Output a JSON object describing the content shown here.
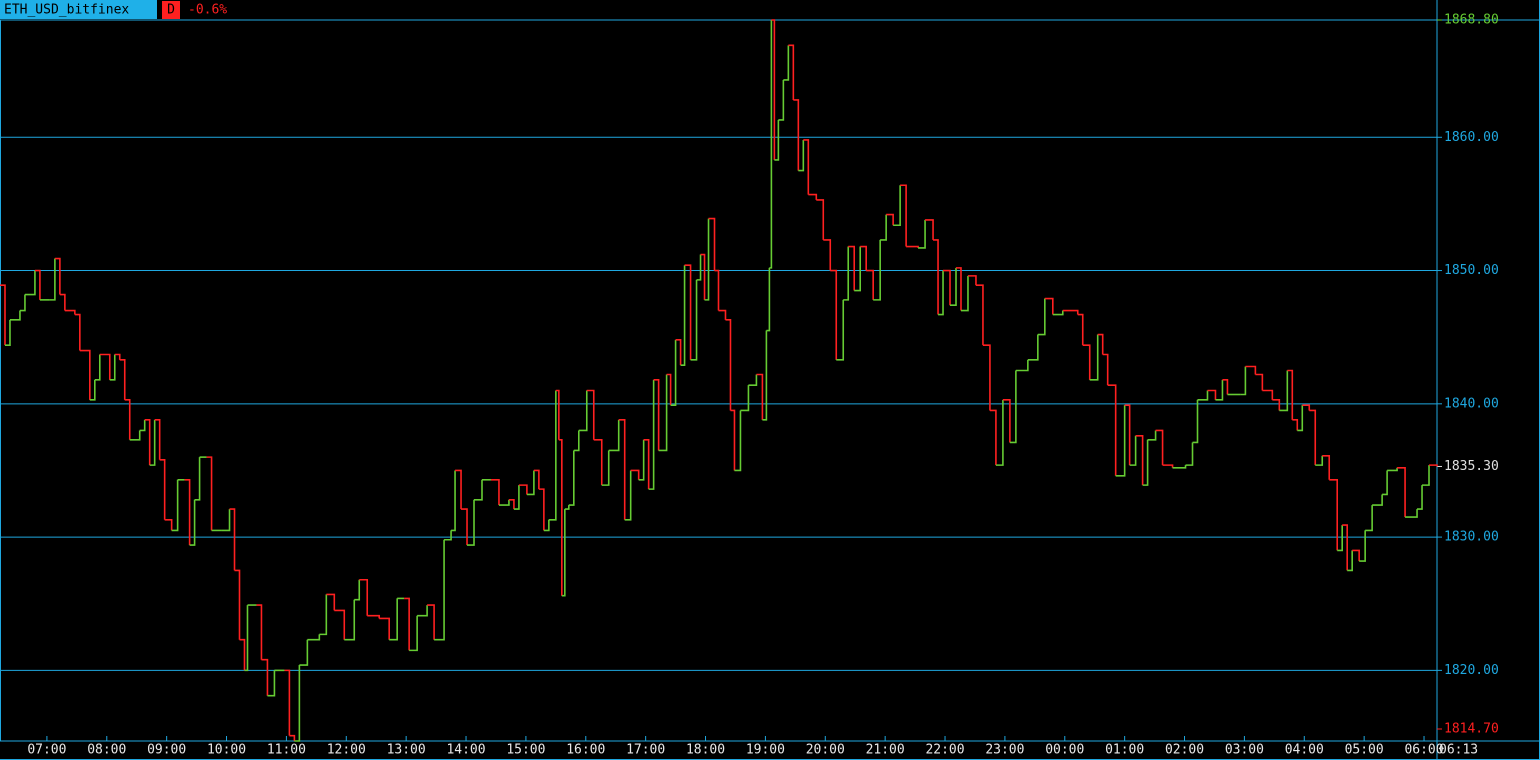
{
  "chart_data": {
    "type": "line",
    "symbol": "ETH_USD_bitfinex",
    "timeframe": "D",
    "change": "-0.6%",
    "up_color": "#66cc33",
    "down_color": "#ff2020",
    "grid_color": "#1fa8e0",
    "grid": true,
    "xlim": [
      0,
      1440
    ],
    "ylim": [
      1814.7,
      1868.8
    ],
    "yticks": [
      {
        "value": 1820,
        "label": "1820.00"
      },
      {
        "value": 1830,
        "label": "1830.00"
      },
      {
        "value": 1840,
        "label": "1840.00"
      },
      {
        "value": 1850,
        "label": "1850.00"
      },
      {
        "value": 1860,
        "label": "1860.00"
      }
    ],
    "xticks": [
      {
        "value": 47,
        "label": "07:00"
      },
      {
        "value": 107,
        "label": "08:00"
      },
      {
        "value": 167,
        "label": "09:00"
      },
      {
        "value": 227,
        "label": "10:00"
      },
      {
        "value": 287,
        "label": "11:00"
      },
      {
        "value": 347,
        "label": "12:00"
      },
      {
        "value": 407,
        "label": "13:00"
      },
      {
        "value": 467,
        "label": "14:00"
      },
      {
        "value": 527,
        "label": "15:00"
      },
      {
        "value": 587,
        "label": "16:00"
      },
      {
        "value": 647,
        "label": "17:00"
      },
      {
        "value": 707,
        "label": "18:00"
      },
      {
        "value": 767,
        "label": "19:00"
      },
      {
        "value": 827,
        "label": "20:00"
      },
      {
        "value": 887,
        "label": "21:00"
      },
      {
        "value": 947,
        "label": "22:00"
      },
      {
        "value": 1007,
        "label": "23:00"
      },
      {
        "value": 1067,
        "label": "00:00"
      },
      {
        "value": 1127,
        "label": "01:00"
      },
      {
        "value": 1187,
        "label": "02:00"
      },
      {
        "value": 1247,
        "label": "03:00"
      },
      {
        "value": 1307,
        "label": "04:00"
      },
      {
        "value": 1367,
        "label": "05:00"
      },
      {
        "value": 1427,
        "label": "06:00"
      },
      {
        "value": 1440,
        "label": "06:13"
      }
    ],
    "annotations": [
      {
        "value": 1868.8,
        "label": "1868.80",
        "color": "#66cc33"
      },
      {
        "value": 1835.3,
        "label": "1835.30",
        "color": "#e0e0e0"
      },
      {
        "value": 1814.7,
        "label": "1814.70",
        "color": "#ff2020"
      }
    ],
    "series": [
      {
        "name": "ETH_USD_bitfinex",
        "x": [
          0,
          5,
          10,
          20,
          25,
          35,
          40,
          50,
          55,
          60,
          65,
          75,
          80,
          90,
          95,
          100,
          110,
          115,
          120,
          125,
          130,
          140,
          145,
          150,
          155,
          160,
          165,
          172,
          178,
          185,
          190,
          195,
          200,
          207,
          212,
          222,
          230,
          235,
          240,
          245,
          248,
          257,
          262,
          268,
          275,
          285,
          290,
          295,
          300,
          308,
          320,
          327,
          335,
          345,
          355,
          360,
          368,
          380,
          390,
          398,
          405,
          410,
          418,
          428,
          435,
          445,
          452,
          456,
          462,
          468,
          475,
          483,
          492,
          500,
          510,
          515,
          520,
          528,
          535,
          540,
          545,
          550,
          557,
          560,
          563,
          566,
          570,
          575,
          580,
          588,
          595,
          603,
          610,
          620,
          626,
          632,
          640,
          645,
          650,
          655,
          660,
          668,
          672,
          677,
          682,
          686,
          692,
          698,
          702,
          706,
          710,
          716,
          720,
          727,
          732,
          736,
          742,
          750,
          758,
          764,
          768,
          771,
          773,
          776,
          780,
          785,
          790,
          795,
          800,
          805,
          810,
          818,
          825,
          832,
          838,
          845,
          850,
          856,
          862,
          868,
          875,
          882,
          888,
          895,
          902,
          908,
          920,
          927,
          935,
          940,
          945,
          952,
          958,
          963,
          970,
          978,
          985,
          992,
          998,
          1005,
          1012,
          1018,
          1030,
          1040,
          1047,
          1055,
          1065,
          1080,
          1085,
          1092,
          1100,
          1105,
          1110,
          1118,
          1127,
          1132,
          1138,
          1145,
          1150,
          1158,
          1165,
          1175,
          1188,
          1195,
          1200,
          1210,
          1218,
          1225,
          1230,
          1243,
          1248,
          1258,
          1265,
          1275,
          1282,
          1290,
          1295,
          1300,
          1305,
          1312,
          1318,
          1325,
          1332,
          1340,
          1345,
          1350,
          1355,
          1362,
          1368,
          1375,
          1385,
          1390,
          1400,
          1408,
          1420,
          1425,
          1432,
          1440
        ],
        "values": [
          1848.9,
          1844.4,
          1846.3,
          1847.0,
          1848.2,
          1850.0,
          1847.8,
          1847.8,
          1850.9,
          1848.2,
          1847.0,
          1846.7,
          1844.0,
          1840.3,
          1841.8,
          1843.7,
          1841.8,
          1843.7,
          1843.3,
          1840.3,
          1837.3,
          1838.0,
          1838.8,
          1835.4,
          1838.8,
          1835.8,
          1831.3,
          1830.5,
          1834.3,
          1834.3,
          1829.4,
          1832.8,
          1836.0,
          1836.0,
          1830.5,
          1830.5,
          1832.1,
          1827.5,
          1822.3,
          1820.0,
          1824.9,
          1824.9,
          1820.8,
          1818.1,
          1820.0,
          1820.0,
          1815.1,
          1814.7,
          1820.4,
          1822.3,
          1822.7,
          1825.7,
          1824.5,
          1822.3,
          1825.3,
          1826.8,
          1824.1,
          1823.9,
          1822.3,
          1825.4,
          1825.4,
          1821.5,
          1824.1,
          1824.9,
          1822.3,
          1829.8,
          1830.5,
          1835.0,
          1832.1,
          1829.4,
          1832.8,
          1834.3,
          1834.3,
          1832.4,
          1832.8,
          1832.1,
          1833.9,
          1833.2,
          1835.0,
          1833.6,
          1830.5,
          1831.3,
          1841.0,
          1837.3,
          1825.6,
          1832.1,
          1832.4,
          1836.5,
          1838.0,
          1841.0,
          1837.3,
          1833.9,
          1836.5,
          1838.8,
          1831.3,
          1835.0,
          1834.3,
          1837.3,
          1833.6,
          1841.8,
          1836.5,
          1842.2,
          1839.9,
          1844.8,
          1842.9,
          1850.4,
          1843.3,
          1849.3,
          1851.2,
          1847.8,
          1853.9,
          1850.0,
          1847.0,
          1846.3,
          1839.5,
          1835.0,
          1839.5,
          1841.4,
          1842.2,
          1838.8,
          1845.5,
          1850.2,
          1868.8,
          1858.3,
          1861.3,
          1864.3,
          1866.9,
          1862.8,
          1857.5,
          1859.8,
          1855.7,
          1855.3,
          1852.3,
          1850.0,
          1843.3,
          1847.8,
          1851.8,
          1848.5,
          1851.8,
          1850.0,
          1847.8,
          1852.3,
          1854.2,
          1853.4,
          1856.4,
          1851.8,
          1851.7,
          1853.8,
          1852.3,
          1846.7,
          1850.0,
          1847.4,
          1850.2,
          1847.0,
          1849.6,
          1848.9,
          1844.4,
          1839.5,
          1835.4,
          1840.3,
          1837.1,
          1842.5,
          1843.3,
          1845.2,
          1847.9,
          1846.7,
          1847.0,
          1846.7,
          1844.4,
          1841.8,
          1845.2,
          1843.7,
          1841.4,
          1834.6,
          1839.9,
          1835.4,
          1837.6,
          1833.9,
          1837.3,
          1838.0,
          1835.4,
          1835.2,
          1835.4,
          1837.1,
          1840.3,
          1841.0,
          1840.3,
          1841.8,
          1840.7,
          1840.7,
          1842.8,
          1842.2,
          1841.0,
          1840.3,
          1839.5,
          1842.5,
          1838.8,
          1838.0,
          1839.9,
          1839.5,
          1835.4,
          1836.1,
          1834.3,
          1829.0,
          1830.9,
          1827.5,
          1829.0,
          1828.2,
          1830.5,
          1832.4,
          1833.2,
          1835.0,
          1835.2,
          1831.5,
          1832.1,
          1833.9,
          1835.4,
          1835.3
        ]
      }
    ]
  }
}
